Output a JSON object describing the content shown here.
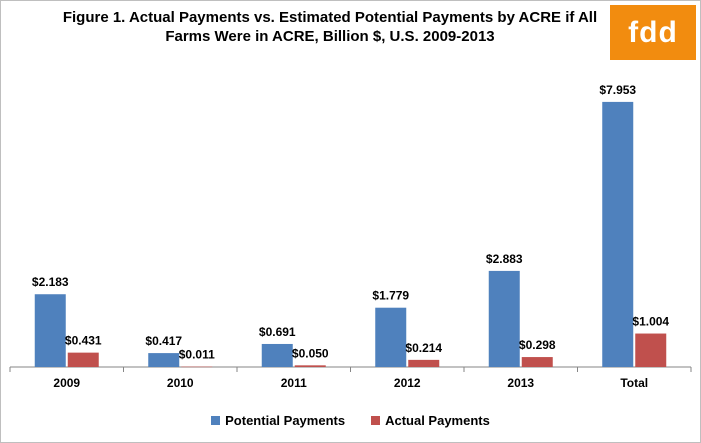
{
  "title": "Figure 1.  Actual Payments vs. Estimated Potential Payments by ACRE if All Farms Were in ACRE, Billion $, U.S. 2009-2013",
  "logo_text": "fdd",
  "colors": {
    "potential": "#4f81bd",
    "actual": "#c0504d",
    "logo": "#f28c0f"
  },
  "chart_data": {
    "type": "bar",
    "title": "Figure 1.  Actual Payments vs. Estimated Potential Payments by ACRE if All Farms Were in ACRE, Billion $, U.S. 2009-2013",
    "categories": [
      "2009",
      "2010",
      "2011",
      "2012",
      "2013",
      "Total"
    ],
    "series": [
      {
        "name": "Potential Payments",
        "values": [
          2.183,
          0.417,
          0.691,
          1.779,
          2.883,
          7.953
        ],
        "labels": [
          "$2.183",
          "$0.417",
          "$0.691",
          "$1.779",
          "$2.883",
          "$7.953"
        ]
      },
      {
        "name": "Actual Payments",
        "values": [
          0.431,
          0.011,
          0.05,
          0.214,
          0.298,
          1.004
        ],
        "labels": [
          "$0.431",
          "$0.011",
          "$0.050",
          "$0.214",
          "$0.298",
          "$1.004"
        ]
      }
    ],
    "ylim": [
      0,
      9
    ],
    "grid": false,
    "legend": "bottom"
  }
}
